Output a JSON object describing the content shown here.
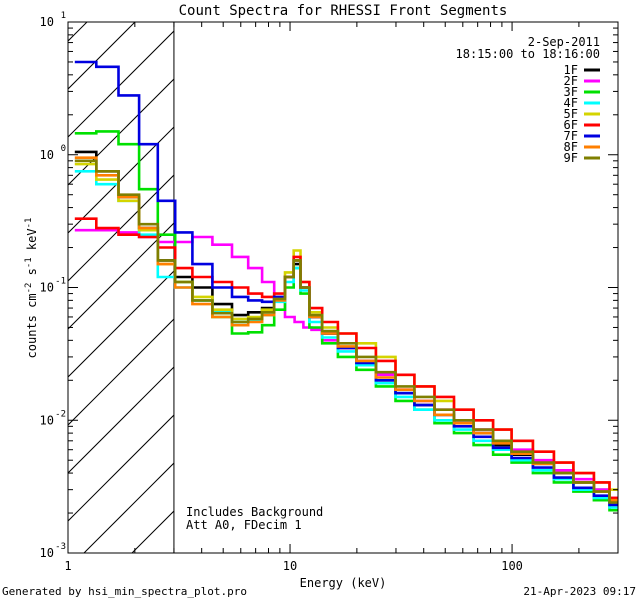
{
  "chart_data": {
    "type": "line",
    "title": "Count Spectra for RHESSI Front Segments",
    "xlabel": "Energy (keV)",
    "ylabel": {
      "base": "counts cm",
      "exp1": "-2",
      "mid": " s",
      "exp2": "-1",
      "tail": " keV",
      "exp3": "-1"
    },
    "xscale": "log",
    "yscale": "log",
    "xlim": [
      1,
      300
    ],
    "ylim": [
      0.001,
      10
    ],
    "x_ticks": [
      {
        "value": 1,
        "label": "1"
      },
      {
        "value": 10,
        "label": "10"
      },
      {
        "value": 100,
        "label": "100"
      }
    ],
    "y_ticks": [
      {
        "value": 0.001,
        "base": "10",
        "exp": "-3"
      },
      {
        "value": 0.01,
        "base": "10",
        "exp": "-2"
      },
      {
        "value": 0.1,
        "base": "10",
        "exp": "-1"
      },
      {
        "value": 1,
        "base": "10",
        "exp": "0"
      },
      {
        "value": 10,
        "base": "10",
        "exp": "1"
      }
    ],
    "hatched_region_keV": [
      1,
      3
    ],
    "date": "2-Sep-2011",
    "time_range": "18:15:00 to 18:16:00",
    "annotations": [
      "Includes Background",
      "Att A0, FDecim 1"
    ],
    "footer_left": "Generated by hsi_min_spectra_plot.pro",
    "footer_right": "21-Apr-2023 09:17",
    "series": [
      {
        "name": "1F",
        "color": "#000000",
        "points": [
          [
            1.2,
            1.05
          ],
          [
            1.5,
            0.75
          ],
          [
            1.9,
            0.48
          ],
          [
            2.3,
            0.28
          ],
          [
            2.8,
            0.16
          ],
          [
            3.3,
            0.12
          ],
          [
            4,
            0.1
          ],
          [
            5,
            0.075
          ],
          [
            6,
            0.062
          ],
          [
            7,
            0.065
          ],
          [
            8,
            0.07
          ],
          [
            9,
            0.085
          ],
          [
            10,
            0.12
          ],
          [
            10.8,
            0.15
          ],
          [
            11.5,
            0.1
          ],
          [
            13,
            0.06
          ],
          [
            15,
            0.045
          ],
          [
            18,
            0.035
          ],
          [
            22,
            0.028
          ],
          [
            27,
            0.02
          ],
          [
            33,
            0.016
          ],
          [
            40,
            0.013
          ],
          [
            50,
            0.011
          ],
          [
            60,
            0.0095
          ],
          [
            75,
            0.008
          ],
          [
            90,
            0.0065
          ],
          [
            110,
            0.0055
          ],
          [
            140,
            0.0047
          ],
          [
            170,
            0.004
          ],
          [
            210,
            0.0034
          ],
          [
            260,
            0.003
          ],
          [
            290,
            0.0024
          ]
        ]
      },
      {
        "name": "2F",
        "color": "#ff00ff",
        "points": [
          [
            1.2,
            0.27
          ],
          [
            1.5,
            0.27
          ],
          [
            1.9,
            0.26
          ],
          [
            2.3,
            0.24
          ],
          [
            2.8,
            0.22
          ],
          [
            3.3,
            0.22
          ],
          [
            4,
            0.24
          ],
          [
            5,
            0.21
          ],
          [
            6,
            0.17
          ],
          [
            7,
            0.14
          ],
          [
            8,
            0.11
          ],
          [
            9,
            0.085
          ],
          [
            10,
            0.06
          ],
          [
            11,
            0.055
          ],
          [
            12,
            0.05
          ],
          [
            13,
            0.048
          ],
          [
            15,
            0.04
          ],
          [
            18,
            0.035
          ],
          [
            22,
            0.028
          ],
          [
            27,
            0.022
          ],
          [
            33,
            0.017
          ],
          [
            40,
            0.014
          ],
          [
            50,
            0.012
          ],
          [
            60,
            0.01
          ],
          [
            75,
            0.0085
          ],
          [
            90,
            0.007
          ],
          [
            110,
            0.006
          ],
          [
            140,
            0.005
          ],
          [
            170,
            0.0042
          ],
          [
            210,
            0.0036
          ],
          [
            260,
            0.003
          ],
          [
            290,
            0.0026
          ]
        ]
      },
      {
        "name": "3F",
        "color": "#00e000",
        "points": [
          [
            1.2,
            1.45
          ],
          [
            1.5,
            1.5
          ],
          [
            1.9,
            1.2
          ],
          [
            2.3,
            0.55
          ],
          [
            2.8,
            0.25
          ],
          [
            3.3,
            0.11
          ],
          [
            4,
            0.08
          ],
          [
            5,
            0.06
          ],
          [
            6,
            0.045
          ],
          [
            7,
            0.046
          ],
          [
            8,
            0.052
          ],
          [
            9,
            0.068
          ],
          [
            10,
            0.1
          ],
          [
            10.8,
            0.14
          ],
          [
            11.5,
            0.09
          ],
          [
            13,
            0.05
          ],
          [
            15,
            0.038
          ],
          [
            18,
            0.03
          ],
          [
            22,
            0.024
          ],
          [
            27,
            0.018
          ],
          [
            33,
            0.014
          ],
          [
            40,
            0.012
          ],
          [
            50,
            0.0095
          ],
          [
            60,
            0.008
          ],
          [
            75,
            0.0065
          ],
          [
            90,
            0.0055
          ],
          [
            110,
            0.0048
          ],
          [
            140,
            0.004
          ],
          [
            170,
            0.0034
          ],
          [
            210,
            0.0029
          ],
          [
            260,
            0.0025
          ],
          [
            290,
            0.0021
          ]
        ]
      },
      {
        "name": "4F",
        "color": "#00ffff",
        "points": [
          [
            1.2,
            0.75
          ],
          [
            1.5,
            0.6
          ],
          [
            1.9,
            0.45
          ],
          [
            2.3,
            0.25
          ],
          [
            2.8,
            0.12
          ],
          [
            3.3,
            0.1
          ],
          [
            4,
            0.08
          ],
          [
            5,
            0.065
          ],
          [
            6,
            0.055
          ],
          [
            7,
            0.056
          ],
          [
            8,
            0.062
          ],
          [
            9,
            0.078
          ],
          [
            10,
            0.11
          ],
          [
            10.8,
            0.14
          ],
          [
            11.5,
            0.095
          ],
          [
            13,
            0.055
          ],
          [
            15,
            0.042
          ],
          [
            18,
            0.033
          ],
          [
            22,
            0.026
          ],
          [
            27,
            0.019
          ],
          [
            33,
            0.015
          ],
          [
            40,
            0.012
          ],
          [
            50,
            0.01
          ],
          [
            60,
            0.0085
          ],
          [
            75,
            0.007
          ],
          [
            90,
            0.006
          ],
          [
            110,
            0.005
          ],
          [
            140,
            0.0042
          ],
          [
            170,
            0.0036
          ],
          [
            210,
            0.003
          ],
          [
            260,
            0.0026
          ],
          [
            290,
            0.0022
          ]
        ]
      },
      {
        "name": "5F",
        "color": "#d4d400",
        "points": [
          [
            1.2,
            0.85
          ],
          [
            1.5,
            0.65
          ],
          [
            1.9,
            0.45
          ],
          [
            2.3,
            0.27
          ],
          [
            2.8,
            0.15
          ],
          [
            3.3,
            0.11
          ],
          [
            4,
            0.085
          ],
          [
            5,
            0.068
          ],
          [
            6,
            0.058
          ],
          [
            7,
            0.06
          ],
          [
            8,
            0.068
          ],
          [
            9,
            0.085
          ],
          [
            10,
            0.13
          ],
          [
            10.8,
            0.19
          ],
          [
            11.5,
            0.11
          ],
          [
            13,
            0.065
          ],
          [
            15,
            0.05
          ],
          [
            18,
            0.045
          ],
          [
            22,
            0.038
          ],
          [
            27,
            0.03
          ],
          [
            33,
            0.022
          ],
          [
            40,
            0.018
          ],
          [
            50,
            0.014
          ],
          [
            60,
            0.012
          ],
          [
            75,
            0.01
          ],
          [
            90,
            0.0085
          ],
          [
            110,
            0.007
          ],
          [
            140,
            0.0058
          ],
          [
            170,
            0.0048
          ],
          [
            210,
            0.004
          ],
          [
            260,
            0.0034
          ],
          [
            290,
            0.003
          ]
        ]
      },
      {
        "name": "6F",
        "color": "#ff0000",
        "points": [
          [
            1.2,
            0.33
          ],
          [
            1.5,
            0.28
          ],
          [
            1.9,
            0.25
          ],
          [
            2.3,
            0.24
          ],
          [
            2.8,
            0.2
          ],
          [
            3.3,
            0.14
          ],
          [
            4,
            0.12
          ],
          [
            5,
            0.11
          ],
          [
            6,
            0.1
          ],
          [
            7,
            0.09
          ],
          [
            8,
            0.085
          ],
          [
            9,
            0.09
          ],
          [
            10,
            0.12
          ],
          [
            10.8,
            0.17
          ],
          [
            11.5,
            0.11
          ],
          [
            13,
            0.07
          ],
          [
            15,
            0.055
          ],
          [
            18,
            0.045
          ],
          [
            22,
            0.035
          ],
          [
            27,
            0.028
          ],
          [
            33,
            0.022
          ],
          [
            40,
            0.018
          ],
          [
            50,
            0.015
          ],
          [
            60,
            0.012
          ],
          [
            75,
            0.01
          ],
          [
            90,
            0.0085
          ],
          [
            110,
            0.007
          ],
          [
            140,
            0.0058
          ],
          [
            170,
            0.0048
          ],
          [
            210,
            0.004
          ],
          [
            260,
            0.0034
          ],
          [
            290,
            0.0026
          ]
        ]
      },
      {
        "name": "7F",
        "color": "#0000e0",
        "points": [
          [
            1.2,
            5
          ],
          [
            1.5,
            4.6
          ],
          [
            1.9,
            2.8
          ],
          [
            2.3,
            1.2
          ],
          [
            2.8,
            0.45
          ],
          [
            3.3,
            0.26
          ],
          [
            4,
            0.15
          ],
          [
            5,
            0.1
          ],
          [
            6,
            0.085
          ],
          [
            7,
            0.08
          ],
          [
            8,
            0.078
          ],
          [
            9,
            0.085
          ],
          [
            10,
            0.12
          ],
          [
            10.8,
            0.16
          ],
          [
            11.5,
            0.1
          ],
          [
            13,
            0.06
          ],
          [
            15,
            0.045
          ],
          [
            18,
            0.035
          ],
          [
            22,
            0.027
          ],
          [
            27,
            0.02
          ],
          [
            33,
            0.016
          ],
          [
            40,
            0.013
          ],
          [
            50,
            0.011
          ],
          [
            60,
            0.009
          ],
          [
            75,
            0.0075
          ],
          [
            90,
            0.0062
          ],
          [
            110,
            0.0052
          ],
          [
            140,
            0.0044
          ],
          [
            170,
            0.0037
          ],
          [
            210,
            0.0031
          ],
          [
            260,
            0.0027
          ],
          [
            290,
            0.0023
          ]
        ]
      },
      {
        "name": "8F",
        "color": "#ff7f00",
        "points": [
          [
            1.2,
            0.95
          ],
          [
            1.5,
            0.7
          ],
          [
            1.9,
            0.48
          ],
          [
            2.3,
            0.28
          ],
          [
            2.8,
            0.15
          ],
          [
            3.3,
            0.1
          ],
          [
            4,
            0.075
          ],
          [
            5,
            0.06
          ],
          [
            6,
            0.052
          ],
          [
            7,
            0.055
          ],
          [
            8,
            0.062
          ],
          [
            9,
            0.08
          ],
          [
            10,
            0.12
          ],
          [
            10.8,
            0.16
          ],
          [
            11.5,
            0.1
          ],
          [
            13,
            0.06
          ],
          [
            15,
            0.045
          ],
          [
            18,
            0.036
          ],
          [
            22,
            0.028
          ],
          [
            27,
            0.021
          ],
          [
            33,
            0.017
          ],
          [
            40,
            0.014
          ],
          [
            50,
            0.011
          ],
          [
            60,
            0.0095
          ],
          [
            75,
            0.008
          ],
          [
            90,
            0.0067
          ],
          [
            110,
            0.0056
          ],
          [
            140,
            0.0047
          ],
          [
            170,
            0.004
          ],
          [
            210,
            0.0034
          ],
          [
            260,
            0.0029
          ],
          [
            290,
            0.0025
          ]
        ]
      },
      {
        "name": "9F",
        "color": "#7f7f00",
        "points": [
          [
            1.2,
            0.9
          ],
          [
            1.5,
            0.75
          ],
          [
            1.9,
            0.5
          ],
          [
            2.3,
            0.3
          ],
          [
            2.8,
            0.16
          ],
          [
            3.3,
            0.11
          ],
          [
            4,
            0.08
          ],
          [
            5,
            0.064
          ],
          [
            6,
            0.055
          ],
          [
            7,
            0.058
          ],
          [
            8,
            0.065
          ],
          [
            9,
            0.082
          ],
          [
            10,
            0.12
          ],
          [
            10.8,
            0.16
          ],
          [
            11.5,
            0.1
          ],
          [
            13,
            0.062
          ],
          [
            15,
            0.047
          ],
          [
            18,
            0.038
          ],
          [
            22,
            0.03
          ],
          [
            27,
            0.023
          ],
          [
            33,
            0.018
          ],
          [
            40,
            0.015
          ],
          [
            50,
            0.012
          ],
          [
            60,
            0.01
          ],
          [
            75,
            0.0085
          ],
          [
            90,
            0.007
          ],
          [
            110,
            0.0058
          ],
          [
            140,
            0.0048
          ],
          [
            170,
            0.004
          ],
          [
            210,
            0.0034
          ],
          [
            260,
            0.0029
          ],
          [
            290,
            0.0024
          ]
        ]
      }
    ]
  }
}
